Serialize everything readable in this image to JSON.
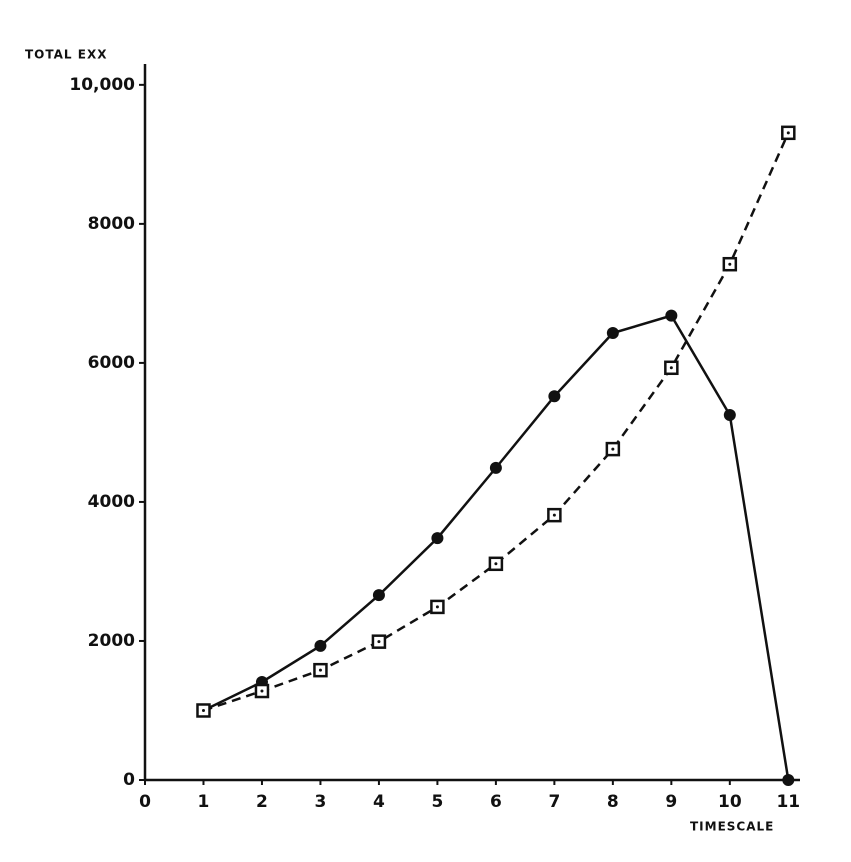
{
  "chart_data": {
    "type": "line",
    "y_label": "TOTAL EXX",
    "x_label": "TIMESCALE",
    "xlim": [
      0,
      11.2
    ],
    "ylim": [
      0,
      10300
    ],
    "xticks": [
      0,
      1,
      2,
      3,
      4,
      5,
      6,
      7,
      8,
      9,
      10,
      11
    ],
    "yticks": [
      0,
      2000,
      4000,
      6000,
      8000,
      {
        "value": 10000,
        "label": "10,000"
      }
    ],
    "grid": false,
    "series": [
      {
        "color": "#111111",
        "linestyle": "solid",
        "marker": "circle",
        "x": [
          1,
          2,
          3,
          4,
          5,
          6,
          7,
          8,
          9,
          10,
          11
        ],
        "values": [
          1000,
          1410,
          1930,
          2660,
          3480,
          4490,
          5520,
          6430,
          6680,
          5250,
          0
        ]
      },
      {
        "color": "#111111",
        "linestyle": "dashed",
        "marker": "square",
        "x": [
          1,
          2,
          3,
          4,
          5,
          6,
          7,
          8,
          9,
          10,
          11
        ],
        "values": [
          1000,
          1280,
          1580,
          1990,
          2490,
          3110,
          3810,
          4760,
          5930,
          7420,
          9310
        ]
      }
    ]
  }
}
